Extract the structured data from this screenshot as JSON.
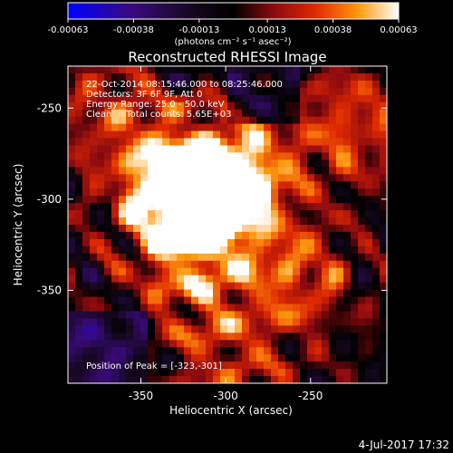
{
  "colorbar": {
    "ticks": [
      "-0.00063",
      "-0.00038",
      "-0.00013",
      "0.00013",
      "0.00038",
      "0.00063"
    ],
    "tick_values": [
      -0.00063,
      -0.00038,
      -0.00013,
      0.00013,
      0.00038,
      0.00063
    ],
    "units": "(photons cm⁻² s⁻¹ asec⁻²)",
    "range": [
      -0.00063,
      0.00063
    ]
  },
  "title": "Reconstructed RHESSI Image",
  "info": {
    "line1": "22-Oct-2014 08:15:46.000 to 08:25:46.000",
    "line2": "Detectors: 3F 6F 9F, Att 0",
    "line3": "Energy Range: 25.0 - 50.0 keV",
    "line4": "Clean     Total counts: 5.65E+03"
  },
  "peak_label": "Position of Peak = [-323,-301]",
  "axes": {
    "xlabel": "Heliocentric X (arcsec)",
    "ylabel": "Heliocentric Y (arcsec)",
    "xticks": [
      "-350",
      "-300",
      "-250"
    ],
    "yticks": [
      "-250",
      "-300",
      "-350"
    ]
  },
  "footer_date": "4-Jul-2017 17:32",
  "colors": {
    "cmap": [
      "#0000ff",
      "#3b0a8a",
      "#1a0a3a",
      "#000000",
      "#5a0a1a",
      "#a01010",
      "#e03a00",
      "#ff8a00",
      "#ffd040",
      "#ffffff"
    ],
    "background": "#000000"
  },
  "chart_data": {
    "type": "heatmap",
    "title": "Reconstructed RHESSI Image",
    "xlabel": "Heliocentric X (arcsec)",
    "ylabel": "Heliocentric Y (arcsec)",
    "xlim": [
      -393,
      -205
    ],
    "ylim": [
      -401,
      -227
    ],
    "xticks": [
      -350,
      -300,
      -250
    ],
    "yticks": [
      -250,
      -300,
      -350
    ],
    "zlim": [
      -0.00063,
      0.00063
    ],
    "peak": [
      -323,
      -301
    ],
    "sources": [
      {
        "x": -323,
        "y": -301,
        "w": 1.0
      },
      {
        "x": -306,
        "y": -297,
        "w": 0.85
      },
      {
        "x": -287,
        "y": -286,
        "w": 0.7
      },
      {
        "x": -332,
        "y": -296,
        "w": 0.75
      },
      {
        "x": -260,
        "y": -343,
        "w": 0.65
      },
      {
        "x": -227,
        "y": -260,
        "w": 0.6
      },
      {
        "x": -318,
        "y": -345,
        "w": 0.55
      },
      {
        "x": -365,
        "y": -255,
        "w": 0.5
      },
      {
        "x": -297,
        "y": -390,
        "w": 0.45
      }
    ]
  }
}
